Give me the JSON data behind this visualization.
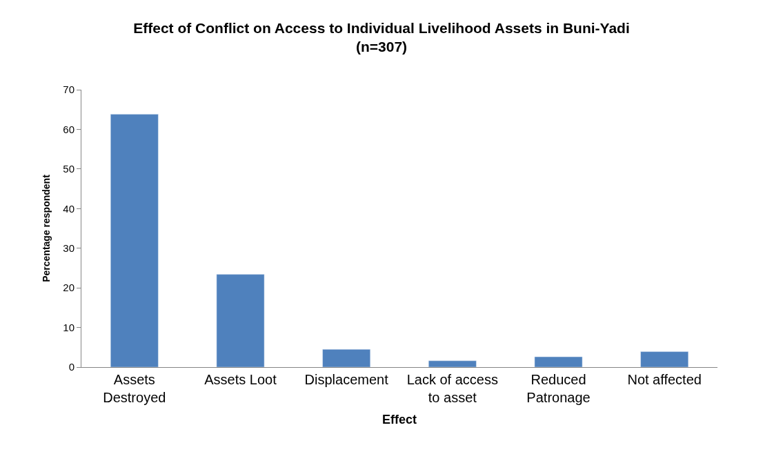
{
  "chart_data": {
    "type": "bar",
    "title": "Effect of Conflict on Access to Individual Livelihood Assets in Buni-Yadi",
    "subtitle": "(n=307)",
    "xlabel": "Effect",
    "ylabel": "Percentage respondent",
    "categories": [
      "Assets Destroyed",
      "Assets Loot",
      "Displacement",
      "Lack of access to asset",
      "Reduced Patronage",
      "Not affected"
    ],
    "values": [
      63.8,
      23.4,
      4.5,
      1.6,
      2.6,
      3.9
    ],
    "color": "#4f81bd",
    "ylim": [
      0,
      70
    ],
    "yticks": [
      0,
      10,
      20,
      30,
      40,
      50,
      60,
      70
    ],
    "legend": false
  }
}
